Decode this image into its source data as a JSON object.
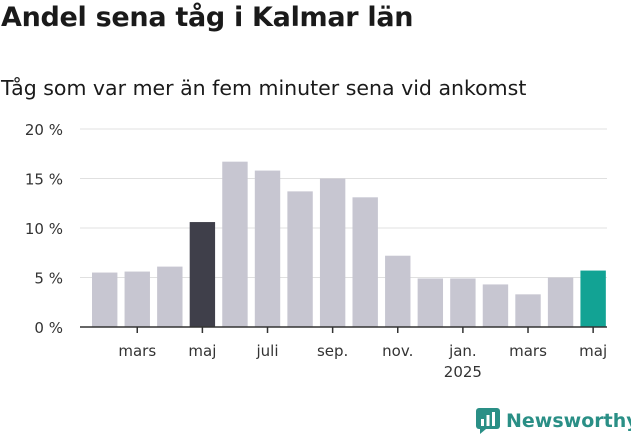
{
  "title": "Andel sena tåg i Kalmar län",
  "subtitle": "Tåg som var mer än fem minuter sena vid ankomst",
  "brand": "Newsworthy",
  "colors": {
    "default_bar": "#c7c6d1",
    "highlight_bar": "#3f3f4a",
    "latest_bar": "#12a394",
    "grid": "#e0e0e0",
    "axis": "#333333",
    "brand": "#2a8f86"
  },
  "chart_data": {
    "type": "bar",
    "ylim": [
      0,
      20
    ],
    "yticks": [
      "0 %",
      "5 %",
      "10 %",
      "15 %",
      "20 %"
    ],
    "ytick_values": [
      0,
      5,
      10,
      15,
      20
    ],
    "grid": true,
    "xlabels": [
      {
        "index": 1,
        "label": "mars"
      },
      {
        "index": 3,
        "label": "maj"
      },
      {
        "index": 5,
        "label": "juli"
      },
      {
        "index": 7,
        "label": "sep."
      },
      {
        "index": 9,
        "label": "nov."
      },
      {
        "index": 11,
        "label": "jan.",
        "sublabel": "2025"
      },
      {
        "index": 13,
        "label": "mars"
      },
      {
        "index": 15,
        "label": "maj"
      }
    ],
    "values": [
      5.5,
      5.6,
      6.1,
      10.6,
      16.7,
      15.8,
      13.7,
      15.0,
      13.1,
      7.2,
      4.9,
      4.9,
      4.3,
      3.3,
      5.0,
      5.7
    ],
    "highlight": [
      {
        "index": 3,
        "color": "highlight"
      },
      {
        "index": 15,
        "color": "latest"
      }
    ]
  }
}
